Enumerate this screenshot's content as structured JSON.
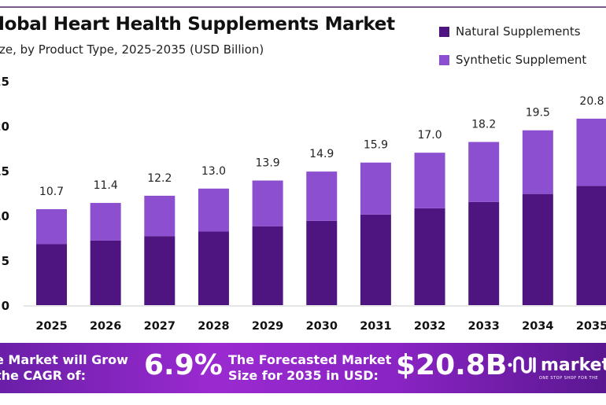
{
  "header": {
    "title": "lobal Heart Health Supplements Market",
    "subtitle": "ze, by Product Type, 2025-2035 (USD Billion)"
  },
  "legend": [
    {
      "label": "Natural Supplements",
      "color": "#4e1580"
    },
    {
      "label": "Synthetic Supplement",
      "color": "#8b4fcf"
    }
  ],
  "chart_data": {
    "type": "bar",
    "stacked": true,
    "categories": [
      "2025",
      "2026",
      "2027",
      "2028",
      "2029",
      "2030",
      "2031",
      "2032",
      "2033",
      "2034",
      "2035"
    ],
    "series": [
      {
        "name": "Natural Supplements",
        "color": "#4e1580",
        "values": [
          6.8,
          7.2,
          7.7,
          8.2,
          8.8,
          9.4,
          10.1,
          10.8,
          11.5,
          12.4,
          13.3
        ]
      },
      {
        "name": "Synthetic Supplements",
        "color": "#8b4fcf",
        "values": [
          3.9,
          4.2,
          4.5,
          4.8,
          5.1,
          5.5,
          5.8,
          6.2,
          6.7,
          7.1,
          7.5
        ]
      }
    ],
    "totals": [
      "10.7",
      "11.4",
      "12.2",
      "13.0",
      "13.9",
      "14.9",
      "15.9",
      "17.0",
      "18.2",
      "19.5",
      "20.8"
    ],
    "yticks": [
      "0",
      "5",
      "10",
      "15",
      "20",
      "25"
    ],
    "ylim": [
      0,
      25
    ],
    "grid": false
  },
  "banner": {
    "cagr_text_1": "e Market will Grow",
    "cagr_text_2": "the CAGR of:",
    "cagr_value": "6.9%",
    "forecast_text_1": "The Forecasted Market",
    "forecast_text_2": "Size for 2035 in USD:",
    "forecast_value": "$20.8B",
    "logo_word": "market.",
    "logo_tagline": "ONE STOP SHOP FOR THE",
    "logo_icon": "market-us-logo-icon"
  }
}
